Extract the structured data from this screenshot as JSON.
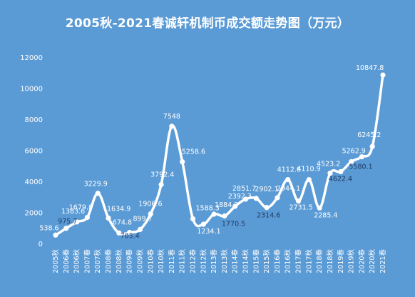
{
  "chart_data": {
    "type": "line",
    "title": "2005秋-2021春诚轩机制币成交额走势图（万元）",
    "xlabel": "",
    "ylabel": "",
    "ylim": [
      0,
      12000
    ],
    "yticks": [
      "0",
      "2000",
      "4000",
      "6000",
      "8000",
      "10000",
      "12000"
    ],
    "grid": false,
    "legend": "none",
    "categories": [
      "2005秋",
      "2006春",
      "2006秋",
      "2007春",
      "2007秋",
      "2008春",
      "2008秋",
      "2009春",
      "2009秋",
      "2010春",
      "2010秋",
      "2011春",
      "2011秋",
      "2012春",
      "2012秋",
      "2013春",
      "2013秋",
      "2014春",
      "2014秋",
      "2015春",
      "2015秋",
      "2016春",
      "2016秋",
      "2017春",
      "2017秋",
      "2018春",
      "2018秋",
      "2019春",
      "2019秋",
      "2020春",
      "2020秋",
      "2021春"
    ],
    "values": [
      538.6,
      975.7,
      1383.6,
      1679.8,
      3229.9,
      1634.9,
      674.8,
      705.4,
      899.7,
      1906.6,
      3792.4,
      7548,
      5258.6,
      1588.3,
      1234.1,
      1884.3,
      1770.5,
      2392.3,
      2851.7,
      2902.1,
      2314.6,
      2944.1,
      4112.6,
      2731.5,
      4110.9,
      2285.4,
      4523.2,
      4622.4,
      5262.9,
      5580.1,
      6245.2,
      10847.8
    ],
    "data_labels": [
      "538.6",
      "975.7",
      "1383.6",
      "1679.8",
      "3229.9",
      "1634.9",
      "674.8",
      "705.4",
      "899.7",
      "1906.6",
      "3792.4",
      "7548",
      "5258.6",
      "1588.3",
      "1234.1",
      "1884.3",
      "1770.5",
      "2392.3",
      "2851.7",
      "2902.1",
      "2314.6",
      "2944.1",
      "4112.6",
      "2731.5",
      "4110.9",
      "2285.4",
      "4523.2",
      "4622.4",
      "5262.9",
      "5580.1",
      "6245.2",
      "10847.8"
    ],
    "colors": {
      "background": "#5b9bd5",
      "line": "#ffffff",
      "text": "#ffffff"
    }
  }
}
